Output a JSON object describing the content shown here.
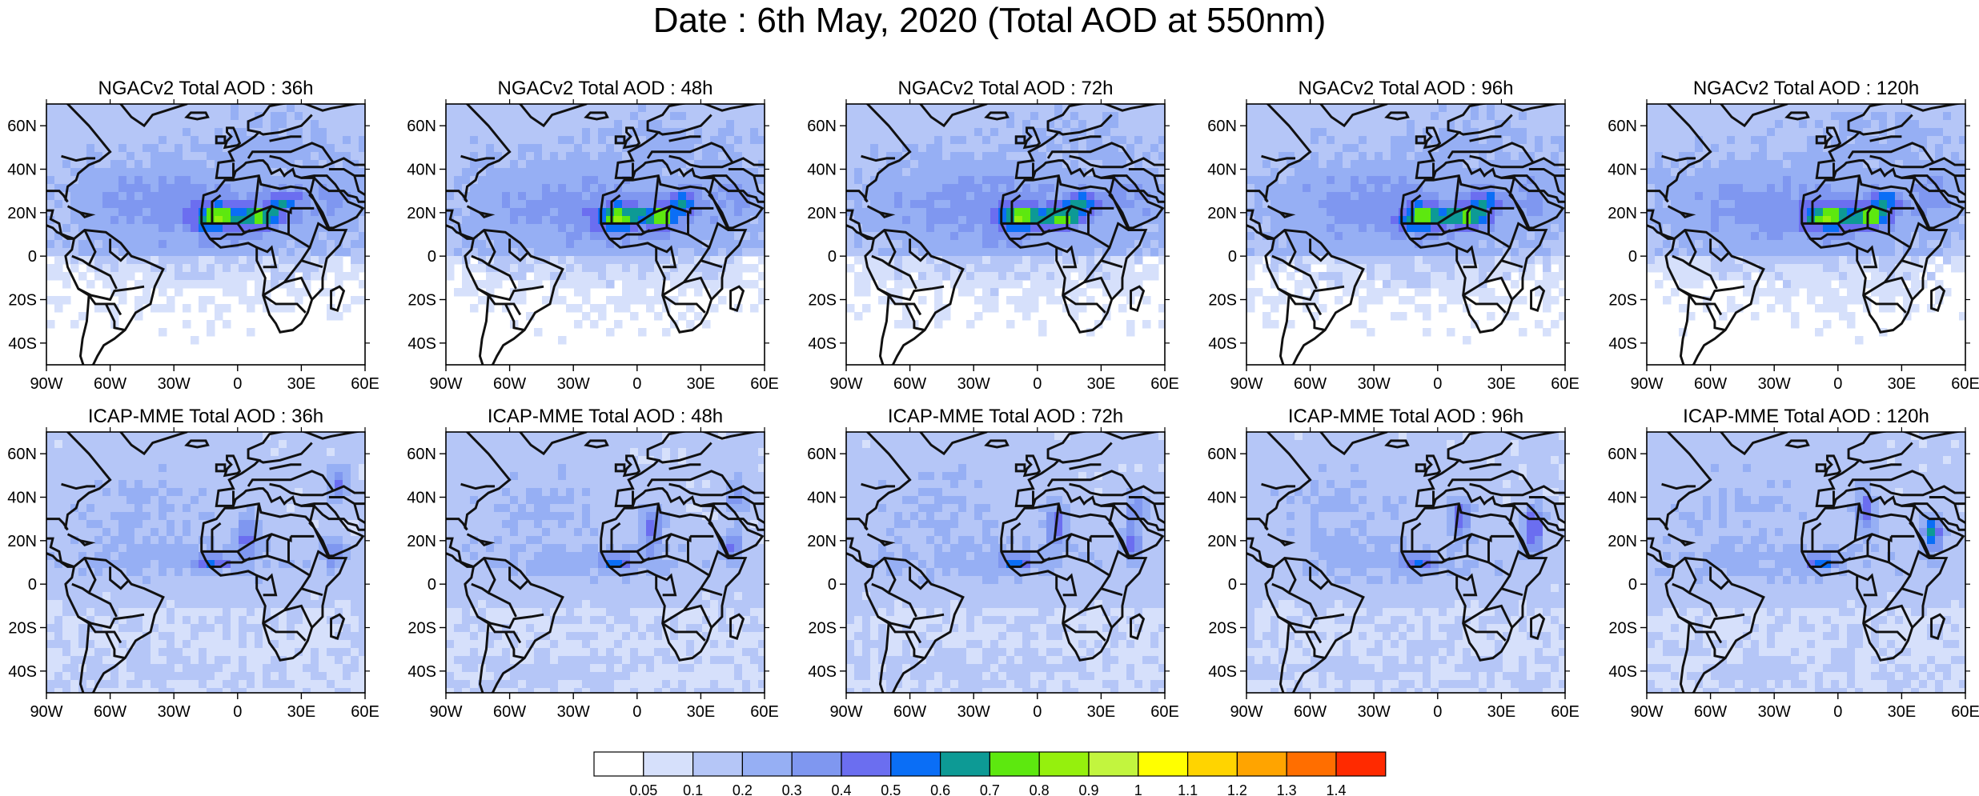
{
  "title": "Date : 6th May, 2020 (Total AOD at 550nm)",
  "lon_ticks": [
    "90W",
    "60W",
    "30W",
    "0",
    "30E",
    "60E"
  ],
  "lat_ticks": [
    "60N",
    "40N",
    "20N",
    "0",
    "20S",
    "40S"
  ],
  "map_extent": {
    "lon": [
      -90,
      60
    ],
    "lat": [
      -50,
      70
    ]
  },
  "rows": [
    {
      "model": "NGACv2",
      "panels": [
        {
          "title": "NGACv2 Total AOD : 36h",
          "lead_hours": 36
        },
        {
          "title": "NGACv2 Total AOD : 48h",
          "lead_hours": 48
        },
        {
          "title": "NGACv2 Total AOD : 72h",
          "lead_hours": 72
        },
        {
          "title": "NGACv2 Total AOD : 96h",
          "lead_hours": 96
        },
        {
          "title": "NGACv2 Total AOD : 120h",
          "lead_hours": 120
        }
      ]
    },
    {
      "model": "ICAP-MME",
      "panels": [
        {
          "title": "ICAP-MME Total AOD : 36h",
          "lead_hours": 36
        },
        {
          "title": "ICAP-MME Total AOD : 48h",
          "lead_hours": 48
        },
        {
          "title": "ICAP-MME Total AOD : 72h",
          "lead_hours": 72
        },
        {
          "title": "ICAP-MME Total AOD : 96h",
          "lead_hours": 96
        },
        {
          "title": "ICAP-MME Total AOD : 120h",
          "lead_hours": 120
        }
      ]
    }
  ],
  "colorbar": {
    "labels": [
      "0.05",
      "0.1",
      "0.2",
      "0.3",
      "0.4",
      "0.5",
      "0.6",
      "0.7",
      "0.8",
      "0.9",
      "1",
      "1.1",
      "1.2",
      "1.3",
      "1.4"
    ],
    "colors": [
      "#ffffff",
      "#d6e0fb",
      "#b5c6f7",
      "#96aff4",
      "#7f97f0",
      "#6b6ef0",
      "#0a6ef6",
      "#0d9a95",
      "#5de80f",
      "#95f00d",
      "#c2f53e",
      "#ffff00",
      "#ffd400",
      "#ffa400",
      "#ff6e00",
      "#ff2a00"
    ]
  }
}
